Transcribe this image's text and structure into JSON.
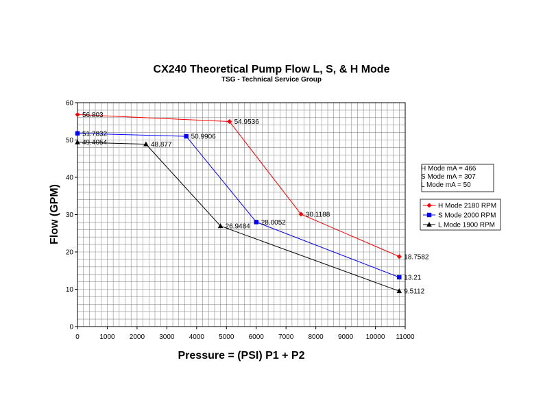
{
  "chart_data": {
    "type": "line",
    "title": "CX240 Theoretical Pump Flow L, S, & H Mode",
    "subtitle": "TSG - Technical Service Group",
    "xlabel": "Pressure = (PSI) P1 + P2",
    "ylabel": "Flow (GPM)",
    "xlim": [
      0,
      11000
    ],
    "ylim": [
      0,
      60
    ],
    "x_ticks": [
      "0",
      "1000",
      "2000",
      "3000",
      "4000",
      "5000",
      "6000",
      "7000",
      "8000",
      "9000",
      "10000",
      "11000"
    ],
    "y_ticks": [
      "0",
      "10",
      "20",
      "30",
      "40",
      "50",
      "60"
    ],
    "grid": true,
    "legend_position": "right",
    "info_box": [
      "H Mode mA  = 466",
      "S Mode mA  = 307",
      "L Mode mA = 50"
    ],
    "series": [
      {
        "name": "H Mode 2180 RPM",
        "color": "#ff0000",
        "marker": "diamond",
        "x": [
          0,
          5100,
          7500,
          10800
        ],
        "y": [
          56.803,
          54.9536,
          30.1188,
          18.7582
        ],
        "labels": [
          "56.803",
          "54.9536",
          "30.1188",
          "18.7582"
        ]
      },
      {
        "name": "S Mode 2000 RPM",
        "color": "#0000ff",
        "marker": "square",
        "x": [
          0,
          3650,
          6000,
          10800
        ],
        "y": [
          51.7832,
          50.9906,
          28.0052,
          13.21
        ],
        "labels": [
          "51.7832",
          "50.9906",
          "28.0052",
          "13.21"
        ]
      },
      {
        "name": "L Mode 1900 RPM",
        "color": "#000000",
        "marker": "triangle",
        "x": [
          0,
          2300,
          4800,
          10800
        ],
        "y": [
          49.4054,
          48.877,
          26.9484,
          9.5112
        ],
        "labels": [
          "49.4054",
          "48.877",
          "26.9484",
          "9.5112"
        ]
      }
    ]
  }
}
